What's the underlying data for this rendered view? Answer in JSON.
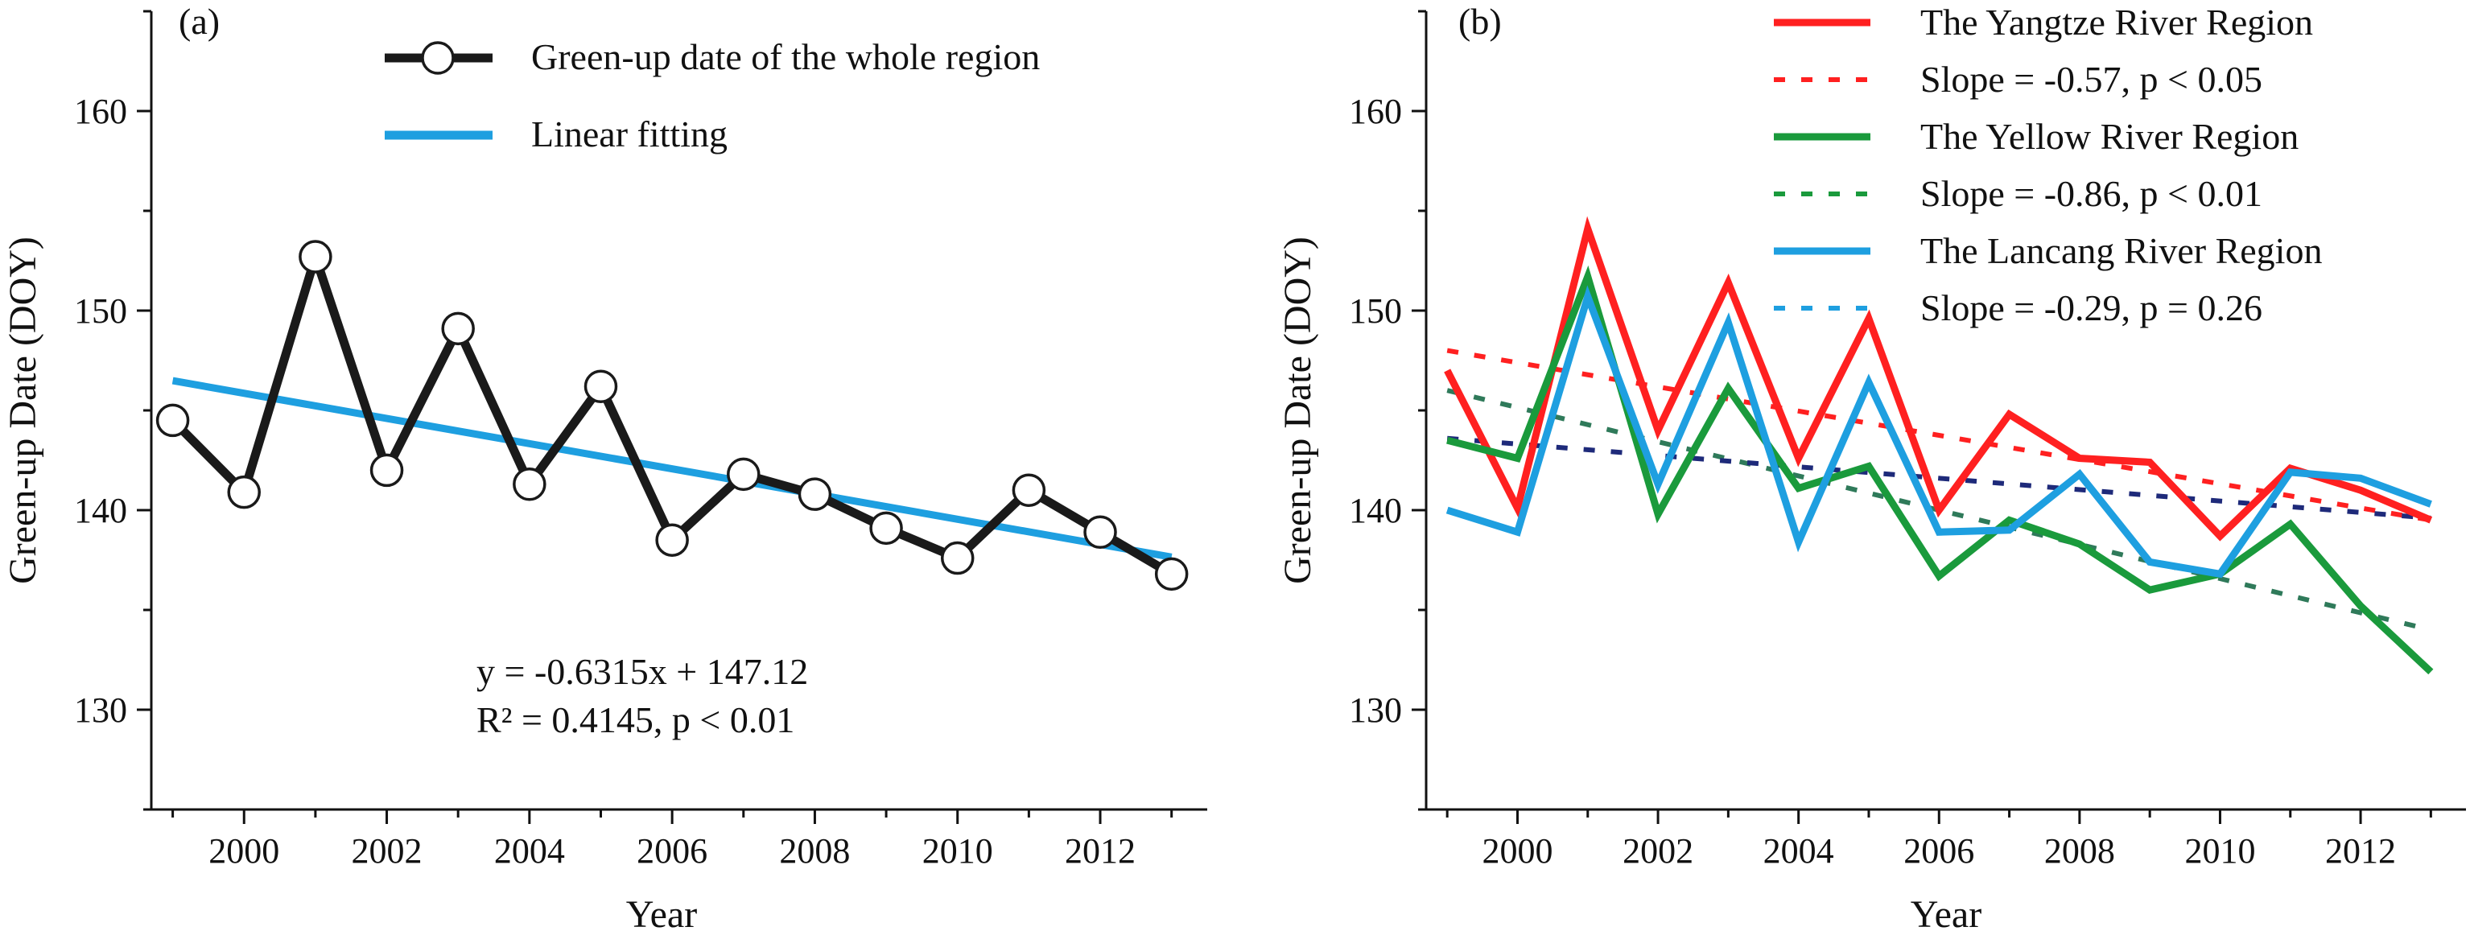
{
  "chart_data": [
    {
      "type": "line",
      "panel_label": "(a)",
      "xlabel": "Year",
      "ylabel": "Green-up Date (DOY)",
      "xlim": [
        1998.7,
        2013.5
      ],
      "ylim": [
        125,
        165
      ],
      "xticks": [
        2000,
        2002,
        2004,
        2006,
        2008,
        2010,
        2012
      ],
      "xtick_labels": [
        "2000",
        "2002",
        "2004",
        "2006",
        "2008",
        "2010",
        "2012"
      ],
      "yticks": [
        130,
        140,
        150,
        160
      ],
      "ytick_labels": [
        "130",
        "140",
        "150",
        "160"
      ],
      "x": [
        1999,
        2000,
        2001,
        2002,
        2003,
        2004,
        2005,
        2006,
        2007,
        2008,
        2009,
        2010,
        2011,
        2012,
        2013
      ],
      "series": [
        {
          "name": "Green-up date of the whole region",
          "color": "#1a1a1a",
          "style": "line-markers",
          "values": [
            144.5,
            140.9,
            152.7,
            142.0,
            149.1,
            141.3,
            146.2,
            138.5,
            141.8,
            140.8,
            139.1,
            137.6,
            141.0,
            138.9,
            136.8
          ]
        },
        {
          "name": "Linear fitting",
          "color": "#1e9fe0",
          "style": "solid",
          "x": [
            1999,
            2013
          ],
          "values": [
            146.49,
            137.65
          ]
        }
      ],
      "annotation_lines": [
        "y = -0.6315x + 147.12",
        "R² = 0.4145,  p < 0.01"
      ],
      "legend_position": "top-right"
    },
    {
      "type": "line",
      "panel_label": "(b)",
      "xlabel": "Year",
      "ylabel": "Green-up Date (DOY)",
      "xlim": [
        1998.7,
        2013.5
      ],
      "ylim": [
        125,
        165
      ],
      "xticks": [
        2000,
        2002,
        2004,
        2006,
        2008,
        2010,
        2012
      ],
      "xtick_labels": [
        "2000",
        "2002",
        "2004",
        "2006",
        "2008",
        "2010",
        "2012"
      ],
      "yticks": [
        130,
        140,
        150,
        160
      ],
      "ytick_labels": [
        "130",
        "140",
        "150",
        "160"
      ],
      "x": [
        1999,
        2000,
        2001,
        2002,
        2003,
        2004,
        2005,
        2006,
        2007,
        2008,
        2009,
        2010,
        2011,
        2012,
        2013
      ],
      "series": [
        {
          "name": "The Yangtze River Region",
          "color": "#ff2020",
          "style": "solid",
          "values": [
            147.0,
            140.1,
            154.1,
            144.0,
            151.4,
            142.6,
            149.6,
            140.0,
            144.8,
            142.6,
            142.4,
            138.7,
            142.1,
            141.0,
            139.5
          ]
        },
        {
          "name": "Slope = -0.57, p < 0.05",
          "color": "#ff2020",
          "style": "dotted",
          "x": [
            1999,
            2013
          ],
          "values": [
            148.0,
            139.5
          ]
        },
        {
          "name": "The Yellow River Region",
          "color": "#1a9a3c",
          "style": "solid",
          "values": [
            143.5,
            142.6,
            151.7,
            139.8,
            146.1,
            141.1,
            142.2,
            136.7,
            139.5,
            138.3,
            136.0,
            136.8,
            139.3,
            135.2,
            131.9
          ]
        },
        {
          "name": "Slope = -0.86, p < 0.01",
          "color": "#2f7a5a",
          "style": "dotted",
          "x": [
            1999,
            2013
          ],
          "values": [
            146.0,
            134.0
          ]
        },
        {
          "name": "The Lancang River Region",
          "color": "#1e9fe0",
          "style": "solid",
          "values": [
            140.0,
            138.9,
            150.7,
            141.3,
            149.4,
            138.4,
            146.4,
            138.9,
            139.0,
            141.8,
            137.4,
            136.8,
            141.9,
            141.6,
            140.3
          ]
        },
        {
          "name": "Slope = -0.29, p = 0.26",
          "color": "#1e2a7a",
          "style": "dotted",
          "x": [
            1999,
            2013
          ],
          "values": [
            143.6,
            139.6
          ]
        }
      ],
      "legend_position": "top-right"
    }
  ],
  "legend_a": [
    {
      "label": "Green-up date of the whole region",
      "color": "#1a1a1a",
      "style": "line-markers"
    },
    {
      "label": "Linear fitting",
      "color": "#1e9fe0",
      "style": "solid"
    }
  ],
  "legend_b": [
    {
      "label": "The Yangtze River Region",
      "color": "#ff2020",
      "style": "solid"
    },
    {
      "label": "Slope = -0.57, p < 0.05",
      "color": "#ff2020",
      "style": "dotted"
    },
    {
      "label": "The Yellow River Region",
      "color": "#1a9a3c",
      "style": "solid"
    },
    {
      "label": "Slope = -0.86, p < 0.01",
      "color": "#1a9a3c",
      "style": "dotted"
    },
    {
      "label": "The Lancang River Region",
      "color": "#1e9fe0",
      "style": "solid"
    },
    {
      "label": "Slope = -0.29, p = 0.26",
      "color": "#1e9fe0",
      "style": "dotted"
    }
  ]
}
